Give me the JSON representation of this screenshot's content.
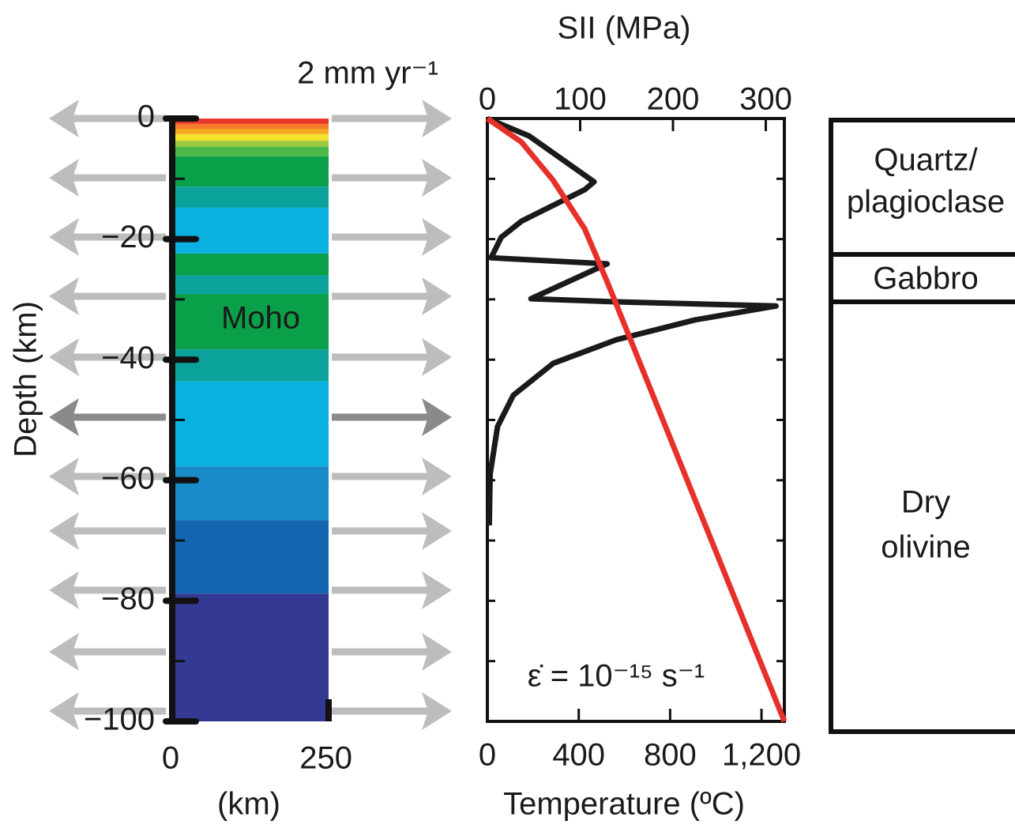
{
  "chart_data": [
    {
      "type": "bands",
      "ylabel": "Depth (km)",
      "xlabel": "(km)",
      "annotation": "Moho",
      "velocity_label": "2 mm yr⁻¹",
      "xlim": [
        0,
        250
      ],
      "xticks": [
        0,
        250
      ],
      "ylim": [
        -100,
        0
      ],
      "yticks": [
        {
          "value": -100,
          "label": "−100"
        },
        {
          "value": -80,
          "label": "−80"
        },
        {
          "value": -60,
          "label": "−60"
        },
        {
          "value": -40,
          "label": "−40"
        },
        {
          "value": -20,
          "label": "−20"
        },
        0
      ],
      "yminor": [
        -90,
        -70,
        -50,
        -30,
        -10
      ],
      "bands": [
        {
          "top": 0,
          "bottom": -0.9,
          "color": "#e8392a"
        },
        {
          "top": -0.9,
          "bottom": -1.7,
          "color": "#f47c2a"
        },
        {
          "top": -1.7,
          "bottom": -2.6,
          "color": "#f6a623"
        },
        {
          "top": -2.6,
          "bottom": -3.7,
          "color": "#f4e12c"
        },
        {
          "top": -3.7,
          "bottom": -4.7,
          "color": "#9cc93d"
        },
        {
          "top": -4.7,
          "bottom": -6.3,
          "color": "#4cb848"
        },
        {
          "top": -6.3,
          "bottom": -11.3,
          "color": "#0aa04a"
        },
        {
          "top": -11.3,
          "bottom": -14.8,
          "color": "#0aa29a"
        },
        {
          "top": -14.8,
          "bottom": -22.4,
          "color": "#0ab1e0"
        },
        {
          "top": -22.4,
          "bottom": -26,
          "color": "#0aa04a"
        },
        {
          "top": -26,
          "bottom": -29.1,
          "color": "#0aa29a"
        },
        {
          "top": -29.1,
          "bottom": -38.3,
          "color": "#0aa04a"
        },
        {
          "top": -38.3,
          "bottom": -43.6,
          "color": "#0aa29a"
        },
        {
          "top": -43.6,
          "bottom": -57.7,
          "color": "#0ab1e0"
        },
        {
          "top": -57.7,
          "bottom": -66.6,
          "color": "#1a8bc9"
        },
        {
          "top": -66.6,
          "bottom": -78.8,
          "color": "#1566b0"
        },
        {
          "top": -78.8,
          "bottom": -100,
          "color": "#343a94"
        }
      ]
    },
    {
      "type": "line",
      "title": "SII (MPa)",
      "xlabel": "Temperature (ºC)",
      "annotation": "ε̇ = 10⁻¹⁵ s⁻¹",
      "xlim": [
        0,
        320
      ],
      "xticks": [
        0,
        100,
        200,
        300
      ],
      "x2lim": [
        0,
        1300
      ],
      "x2ticks": [
        0,
        400,
        800,
        {
          "value": 1200,
          "label": "1,200"
        }
      ],
      "ylim": [
        -100,
        0
      ],
      "yticks": [
        -90,
        -80,
        -70,
        -60,
        -50,
        -40,
        -30,
        -20,
        -10
      ],
      "series": [
        {
          "color": "#1a1a1a",
          "axis": "x",
          "x": [
            0,
            45,
            115,
            105,
            71,
            37,
            15,
            4,
            129,
            47,
            139,
            311,
            224,
            139,
            71,
            28,
            11,
            3,
            2
          ],
          "y": [
            0,
            -2.9,
            -10.5,
            -11.8,
            -14.4,
            -17,
            -19.7,
            -23.1,
            -24.1,
            -29.9,
            -30.4,
            -31.1,
            -33.4,
            -36.7,
            -40.6,
            -45.9,
            -51.1,
            -59,
            -67.5
          ]
        },
        {
          "color": "#e8302a",
          "axis": "x2",
          "x": [
            0,
            149,
            287,
            426,
            529,
            1300
          ],
          "y": [
            0,
            -3.9,
            -10.2,
            -18.3,
            -27.5,
            -100
          ]
        }
      ]
    }
  ],
  "rheology": {
    "layers": [
      {
        "lines": [
          "Quartz/",
          "plagioclase"
        ]
      },
      {
        "lines": [
          "Gabbro"
        ]
      },
      {
        "lines": [
          "Dry",
          "olivine"
        ]
      }
    ]
  }
}
